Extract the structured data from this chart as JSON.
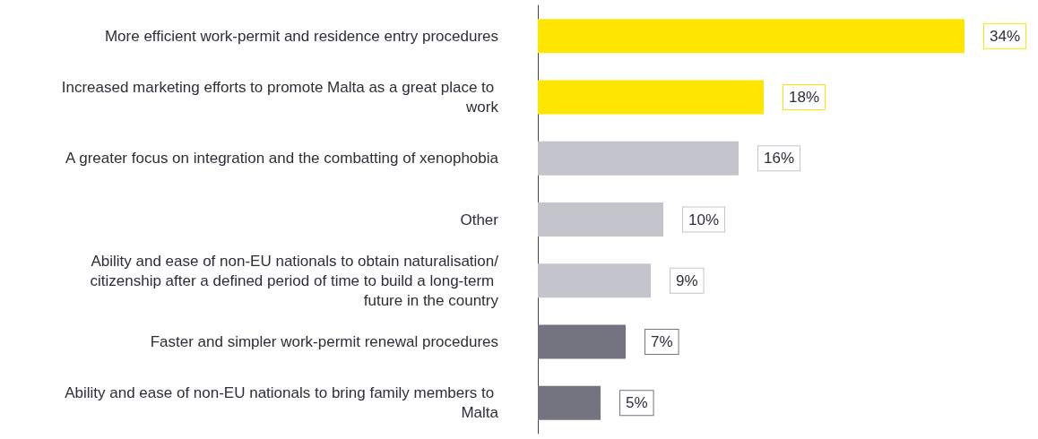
{
  "chart_data": {
    "type": "bar",
    "orientation": "horizontal",
    "categories": [
      "More efficient work-permit and residence entry procedures",
      "Increased marketing efforts to promote Malta as a great place to work",
      "A greater focus on integration and the combatting of xenophobia",
      "Other",
      "Ability and ease of non-EU nationals to obtain naturalisation/citizenship after a defined period of time to build a long-term future in the country",
      "Faster and simpler work-permit renewal procedures",
      "Ability and ease of non-EU nationals to bring family members to Malta"
    ],
    "values": [
      34,
      18,
      16,
      10,
      9,
      7,
      5
    ],
    "value_labels": [
      "34%",
      "18%",
      "16%",
      "10%",
      "9%",
      "7%",
      "5%"
    ],
    "colors": [
      "#ffe600",
      "#ffe600",
      "#c4c4cd",
      "#c4c4cd",
      "#c4c4cd",
      "#747480",
      "#747480"
    ]
  }
}
